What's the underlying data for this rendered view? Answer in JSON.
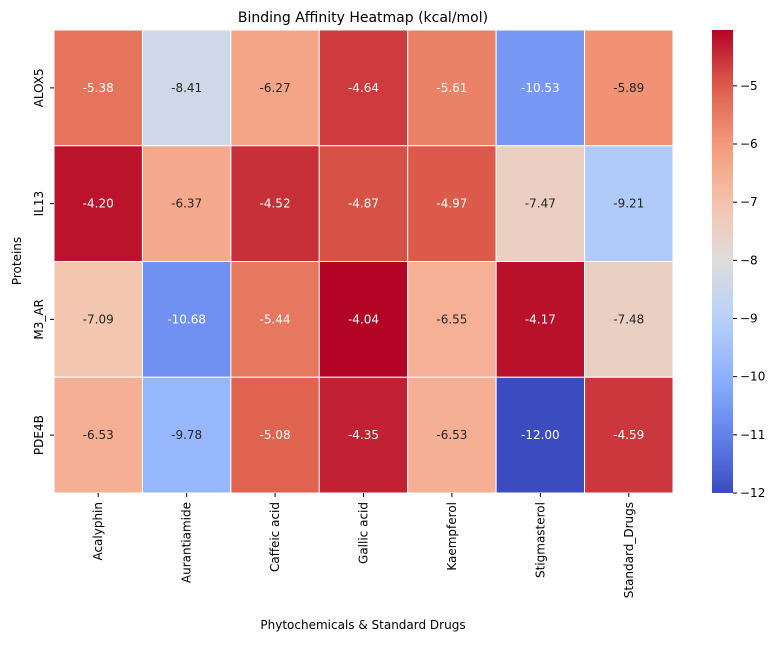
{
  "chart_data": {
    "type": "heatmap",
    "title": "Binding Affinity Heatmap (kcal/mol)",
    "xlabel": "Phytochemicals & Standard Drugs",
    "ylabel": "Proteins",
    "columns": [
      "Acalyphin",
      "Aurantiamide",
      "Caffeic acid",
      "Gallic acid",
      "Kaempferol",
      "Stigmasterol",
      "Standard_Drugs"
    ],
    "rows": [
      "ALOX5",
      "IL13",
      "M3_AR",
      "PDE4B"
    ],
    "values": [
      [
        -5.38,
        -8.41,
        -6.27,
        -4.64,
        -5.61,
        -10.53,
        -5.89
      ],
      [
        -4.2,
        -6.37,
        -4.52,
        -4.87,
        -4.97,
        -7.47,
        -9.21
      ],
      [
        -7.09,
        -10.68,
        -5.44,
        -4.04,
        -6.55,
        -4.17,
        -7.48
      ],
      [
        -6.53,
        -9.78,
        -5.08,
        -4.35,
        -6.53,
        -12.0,
        -4.59
      ]
    ],
    "colormap": "coolwarm",
    "vmin": -12.0,
    "vmax": -4.04,
    "annotation_format": "0.2f",
    "colorbar": {
      "ticks": [
        -5,
        -6,
        -7,
        -8,
        -9,
        -10,
        -11,
        -12
      ],
      "tick_labels": [
        "−5",
        "−6",
        "−7",
        "−8",
        "−9",
        "−10",
        "−11",
        "−12"
      ],
      "placement": "right"
    }
  }
}
